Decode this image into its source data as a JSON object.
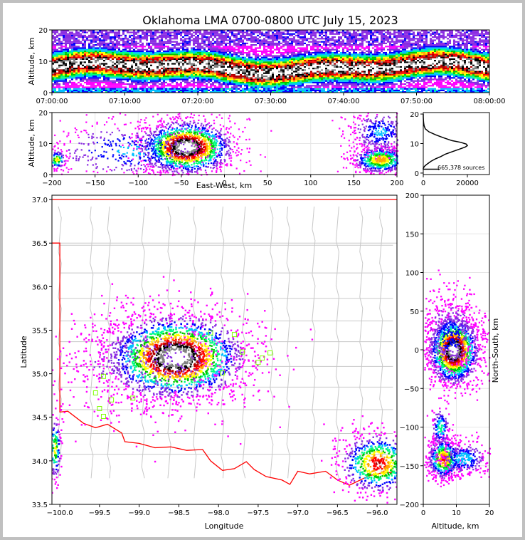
{
  "title": "Oklahoma LMA 0700-0800 UTC July 15, 2023",
  "colors": {
    "palette": [
      "#ff00ff",
      "#8a2be2",
      "#0000ff",
      "#00bfff",
      "#00ff7f",
      "#00c800",
      "#ffff00",
      "#ffa500",
      "#ff0000",
      "#b00000",
      "#000000",
      "#808080",
      "#ffffff"
    ],
    "state_line": "#ff0000",
    "county_lines": "#c8c8c8",
    "station_marker": "#7fff00"
  },
  "sources_label": "665,378 sources",
  "chart_data": [
    {
      "id": "time-height",
      "type": "heatmap",
      "ylabel": "Altitude, km",
      "ylim": [
        0,
        20
      ],
      "yticks": [
        "0",
        "10",
        "20"
      ],
      "xlim_minutes": [
        0,
        60
      ],
      "xtick_labels": [
        "07:00:00",
        "07:10:00",
        "07:20:00",
        "07:30:00",
        "07:40:00",
        "07:50:00",
        "08:00:00"
      ],
      "description_core_altitude_km": [
        6,
        11
      ]
    },
    {
      "id": "east-west-altitude",
      "type": "heatmap",
      "xlabel": "East-West, km",
      "ylabel": "Altitude, km",
      "xlim": [
        -200,
        200
      ],
      "ylim": [
        0,
        20
      ],
      "xtick_labels": [
        "−200",
        "−150",
        "−100",
        "−50",
        "0",
        "50",
        "100",
        "150",
        "200"
      ],
      "ytick_labels": [
        "0",
        "10",
        "20"
      ],
      "grid": true,
      "clusters": [
        {
          "x_range": [
            -100,
            -10
          ],
          "alt_range": [
            0,
            20
          ],
          "peak_x": -45,
          "peak_alt": 9
        },
        {
          "x_range": [
            150,
            200
          ],
          "alt_range": [
            2,
            20
          ],
          "peak_x": 180,
          "peak_alt": 5
        },
        {
          "x_range": [
            -200,
            -180
          ],
          "alt_range": [
            3,
            8
          ],
          "peak_x": -195,
          "peak_alt": 5
        }
      ]
    },
    {
      "id": "altitude-histogram",
      "type": "line",
      "xlim": [
        0,
        30000
      ],
      "xtick_labels": [
        "0",
        "20000"
      ],
      "ylim": [
        0,
        20
      ],
      "ytick_labels": [
        "0",
        "10",
        "20"
      ],
      "points": [
        [
          0,
          20
        ],
        [
          0,
          19
        ],
        [
          50,
          18
        ],
        [
          150,
          17
        ],
        [
          400,
          16
        ],
        [
          900,
          15
        ],
        [
          2500,
          14
        ],
        [
          5500,
          13
        ],
        [
          9000,
          12
        ],
        [
          13000,
          11
        ],
        [
          17000,
          10.4
        ],
        [
          19500,
          9.8
        ],
        [
          20000,
          9.3
        ],
        [
          19000,
          8.8
        ],
        [
          16000,
          8
        ],
        [
          13000,
          7.2
        ],
        [
          10000,
          6.4
        ],
        [
          8000,
          5.6
        ],
        [
          5500,
          4.8
        ],
        [
          3500,
          4
        ],
        [
          2000,
          3.2
        ],
        [
          800,
          2.5
        ],
        [
          300,
          2
        ],
        [
          0,
          1.6
        ],
        [
          0,
          1.3
        ],
        [
          7000,
          1.3
        ],
        [
          7000,
          1
        ]
      ]
    },
    {
      "id": "plan-view",
      "type": "heatmap",
      "xlabel": "Longitude",
      "ylabel": "Latitude",
      "xlim": [
        -100.1,
        -95.75
      ],
      "ylim": [
        33.5,
        37.05
      ],
      "xtick_labels": [
        "−100.0",
        "−99.5",
        "−99.0",
        "−98.5",
        "−98.0",
        "−97.5",
        "−97.0",
        "−96.5",
        "−96.0"
      ],
      "ytick_labels": [
        "33.5",
        "34.0",
        "34.5",
        "35.0",
        "35.5",
        "36.0",
        "36.5",
        "37.0"
      ],
      "stations": [
        [
          -99.45,
          34.97
        ],
        [
          -99.55,
          34.78
        ],
        [
          -99.35,
          34.7
        ],
        [
          -99.5,
          34.6
        ],
        [
          -99.45,
          34.51
        ],
        [
          -99.08,
          34.72
        ],
        [
          -98.1,
          35.47
        ],
        [
          -97.8,
          35.45
        ],
        [
          -97.7,
          35.25
        ],
        [
          -97.95,
          35.01
        ],
        [
          -97.5,
          35.13
        ],
        [
          -97.45,
          35.18
        ],
        [
          -97.35,
          35.24
        ]
      ],
      "clusters": [
        {
          "lon": -98.55,
          "lat": 35.2,
          "spread_lon": 0.45,
          "spread_lat": 0.25
        },
        {
          "lon": -96.0,
          "lat": 33.98,
          "spread_lon": 0.25,
          "spread_lat": 0.18
        },
        {
          "lon": -100.07,
          "lat": 34.15,
          "spread_lon": 0.04,
          "spread_lat": 0.2
        }
      ]
    },
    {
      "id": "altitude-north-south",
      "type": "heatmap",
      "xlabel": "Altitude, km",
      "ylabel": "North-South, km",
      "xlim": [
        0,
        20
      ],
      "ylim": [
        -200,
        200
      ],
      "xtick_labels": [
        "0",
        "10",
        "20"
      ],
      "ytick_labels": [
        "−200",
        "−150",
        "−100",
        "−50",
        "0",
        "50",
        "100",
        "150",
        "200"
      ],
      "grid": true
    }
  ]
}
